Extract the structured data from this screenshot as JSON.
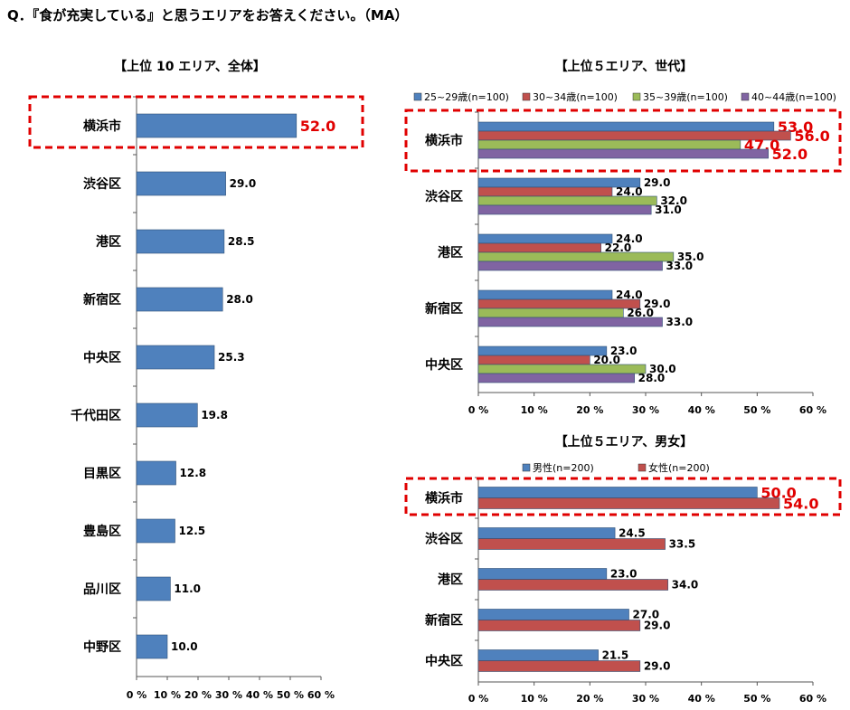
{
  "question": "Q．『食が充実している』と思うエリアをお答えください。（MA）",
  "highlight_color": "#e00000",
  "chart_data": [
    {
      "id": "overall",
      "type": "bar",
      "orientation": "horizontal",
      "title": "【上位 10 エリア、全体】",
      "categories": [
        "横浜市",
        "渋谷区",
        "港区",
        "新宿区",
        "中央区",
        "千代田区",
        "目黒区",
        "豊島区",
        "品川区",
        "中野区"
      ],
      "series": [
        {
          "values": [
            52.0,
            29.0,
            28.5,
            28.0,
            25.3,
            19.8,
            12.8,
            12.5,
            11.0,
            10.0
          ],
          "color": "#4f81bd"
        }
      ],
      "xlim": [
        0,
        60
      ],
      "xticks": [
        "0 %",
        "10 %",
        "20 %",
        "30 %",
        "40 %",
        "50 %",
        "60 %"
      ],
      "highlight_category": "横浜市",
      "legend": "none"
    },
    {
      "id": "by_age",
      "type": "bar",
      "orientation": "horizontal",
      "title": "【上位５エリア、世代】",
      "categories": [
        "横浜市",
        "渋谷区",
        "港区",
        "新宿区",
        "中央区"
      ],
      "series": [
        {
          "name": "25~29歳(n=100)",
          "values": [
            53.0,
            29.0,
            24.0,
            24.0,
            23.0
          ],
          "color": "#4f81bd"
        },
        {
          "name": "30~34歳(n=100)",
          "values": [
            56.0,
            24.0,
            22.0,
            29.0,
            20.0
          ],
          "color": "#c0504d"
        },
        {
          "name": "35~39歳(n=100)",
          "values": [
            47.0,
            32.0,
            35.0,
            26.0,
            30.0
          ],
          "color": "#9bbb59"
        },
        {
          "name": "40~44歳(n=100)",
          "values": [
            52.0,
            31.0,
            33.0,
            33.0,
            28.0
          ],
          "color": "#8064a2"
        }
      ],
      "xlim": [
        0,
        60
      ],
      "xticks": [
        "0 %",
        "10 %",
        "20 %",
        "30 %",
        "40 %",
        "50 %",
        "60 %"
      ],
      "highlight_category": "横浜市",
      "legend": "top"
    },
    {
      "id": "by_gender",
      "type": "bar",
      "orientation": "horizontal",
      "title": "【上位５エリア、男女】",
      "categories": [
        "横浜市",
        "渋谷区",
        "港区",
        "新宿区",
        "中央区"
      ],
      "series": [
        {
          "name": "男性(n=200)",
          "values": [
            50.0,
            24.5,
            23.0,
            27.0,
            21.5
          ],
          "color": "#4f81bd"
        },
        {
          "name": "女性(n=200)",
          "values": [
            54.0,
            33.5,
            34.0,
            29.0,
            29.0
          ],
          "color": "#c0504d"
        }
      ],
      "xlim": [
        0,
        60
      ],
      "xticks": [
        "0 %",
        "10 %",
        "20 %",
        "30 %",
        "40 %",
        "50 %",
        "60 %"
      ],
      "highlight_category": "横浜市",
      "legend": "top"
    }
  ]
}
